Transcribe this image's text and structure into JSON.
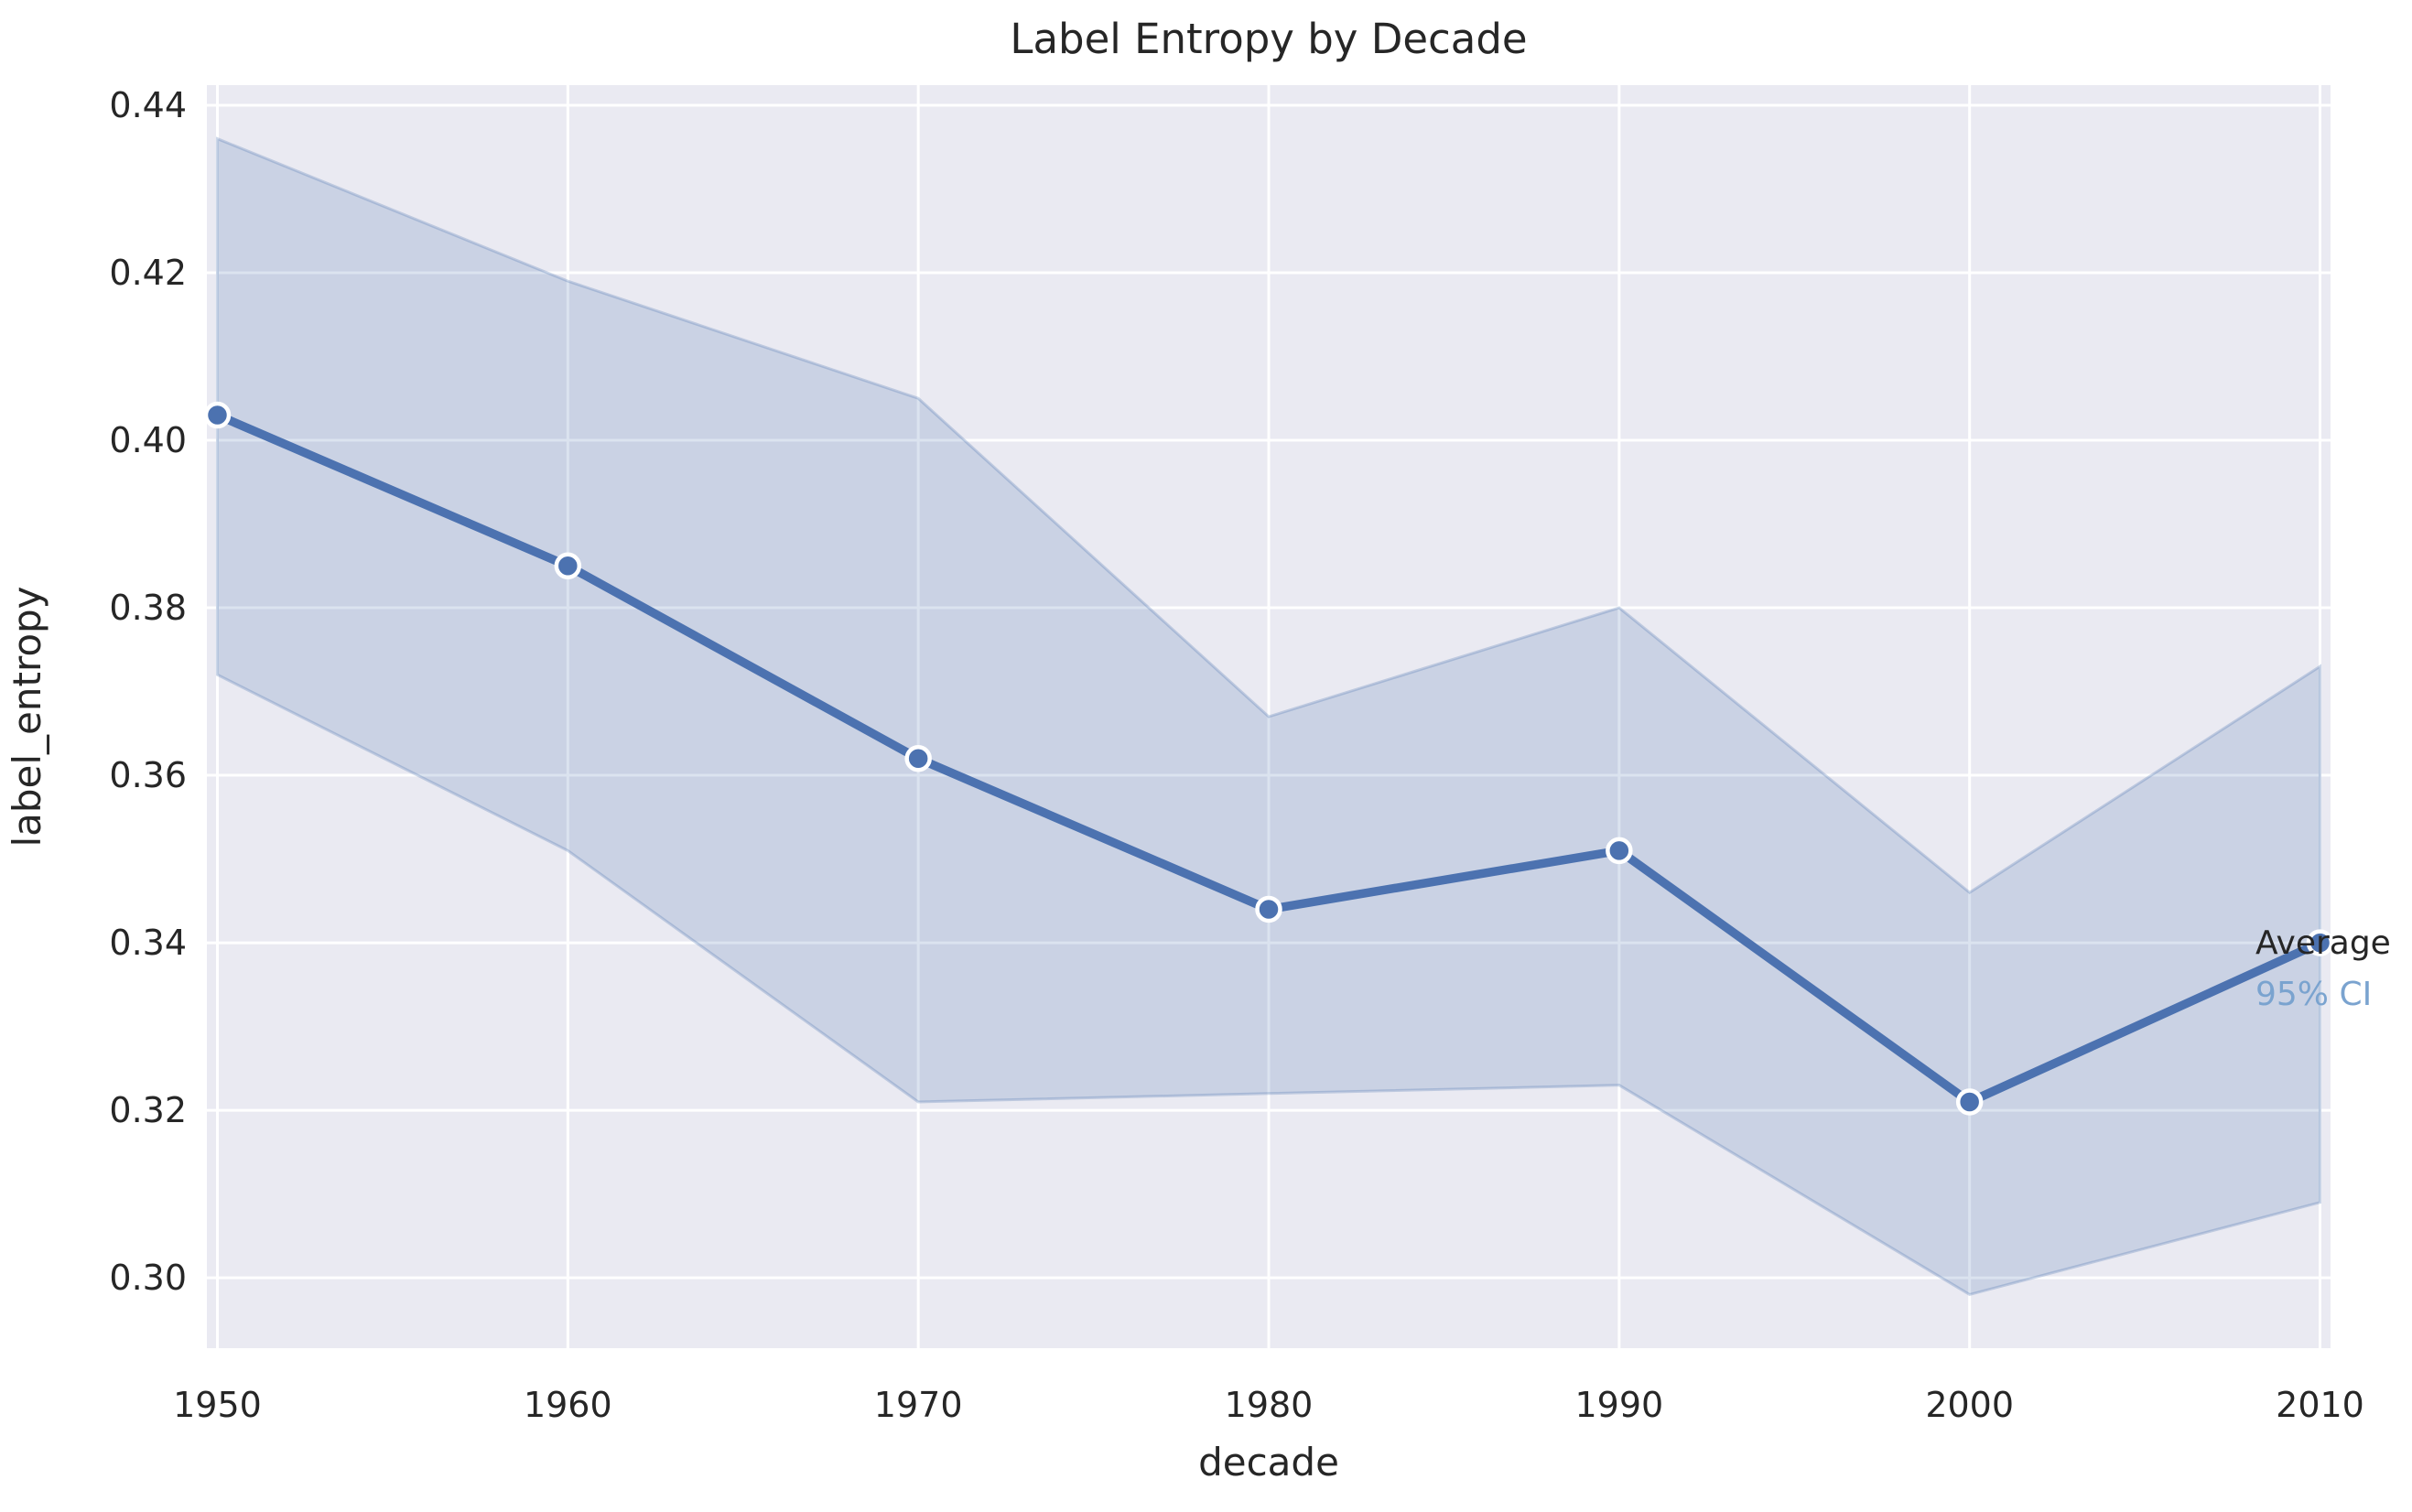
{
  "figure": {
    "title": "Label Entropy by Decade",
    "xlabel": "decade",
    "ylabel": "label_entropy"
  },
  "annotations": {
    "average_label": "Average",
    "ci_label": "95% CI"
  },
  "chart_data": {
    "type": "line",
    "title": "Label Entropy by Decade",
    "xlabel": "decade",
    "ylabel": "label_entropy",
    "x": [
      1950,
      1960,
      1970,
      1980,
      1990,
      2000,
      2010
    ],
    "series": [
      {
        "name": "Average",
        "values": [
          0.403,
          0.385,
          0.362,
          0.344,
          0.351,
          0.321,
          0.34
        ]
      },
      {
        "name": "95% CI upper",
        "values": [
          0.436,
          0.419,
          0.405,
          0.367,
          0.38,
          0.346,
          0.373
        ]
      },
      {
        "name": "95% CI lower",
        "values": [
          0.372,
          0.351,
          0.321,
          0.322,
          0.323,
          0.298,
          0.309
        ]
      }
    ],
    "xticks": [
      "1950",
      "1960",
      "1970",
      "1980",
      "1990",
      "2000",
      "2010"
    ],
    "yticks": [
      "0.30",
      "0.32",
      "0.34",
      "0.36",
      "0.38",
      "0.40",
      "0.42",
      "0.44"
    ],
    "xlim": [
      1949.7,
      2010.3
    ],
    "ylim": [
      0.2916,
      0.4424
    ],
    "grid": true,
    "legend_position": "right-of-last-point",
    "colors": {
      "line": "#4c72b0",
      "marker": "#4c72b0",
      "marker_edge": "#ffffff",
      "band_fill": "#4c72b0",
      "band_opacity": "0.2",
      "band_edge": "#4c72b0",
      "band_edge_opacity": "0.28",
      "axes_background": "#eaeaf2",
      "grid": "#ffffff",
      "text": "#262626",
      "ci_label_color": "#7aa3cf"
    }
  }
}
